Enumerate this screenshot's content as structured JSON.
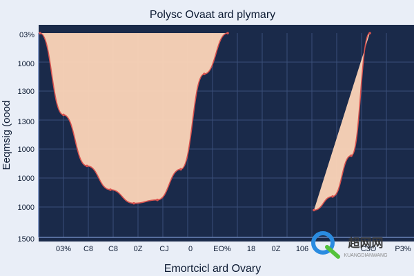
{
  "chart_data": {
    "type": "area",
    "title": "Polysc Ovaat ard plymary",
    "xlabel": "Emortcicl ard Ovary",
    "ylabel": "Eeqmsig (oood",
    "y_ticks": [
      "03%",
      "1000",
      "1300",
      "1300",
      "1000",
      "1000",
      "1000",
      "1500"
    ],
    "x_ticks": [
      "03%",
      "C8",
      "C8",
      "0Z",
      "CJ",
      "0",
      "EO%",
      "18",
      "0Z",
      "106",
      "C3O",
      "P3%"
    ],
    "grid": true,
    "colors": {
      "background": "#1a2a4a",
      "fill": "#fdd5b8",
      "curve": "#d9534f",
      "grid": "#3a4f79",
      "axis": "#6b83b8"
    },
    "left_curve": {
      "x": [
        0,
        1,
        2,
        3,
        4,
        5,
        6,
        7,
        8
      ],
      "y": [
        1000,
        1240,
        1390,
        1460,
        1500,
        1490,
        1400,
        1120,
        1000
      ]
    },
    "right_curve": {
      "x": [
        9,
        10,
        11,
        12
      ],
      "y": [
        1520,
        1480,
        1360,
        1000
      ]
    }
  },
  "watermark": {
    "text": "超网网",
    "subtext": "KUANGDIANWANG"
  }
}
